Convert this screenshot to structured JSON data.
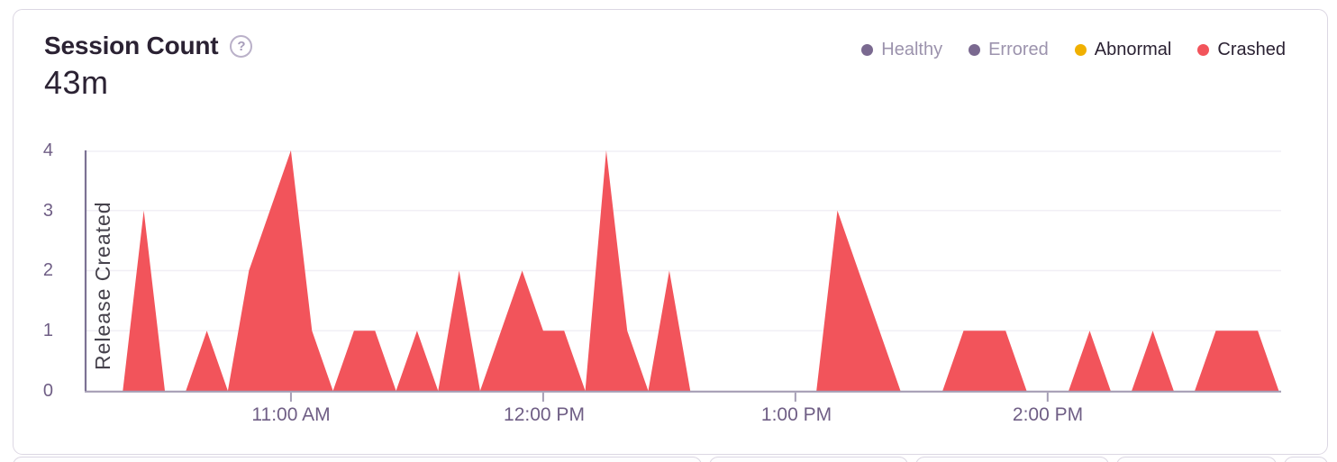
{
  "card": {
    "title": "Session Count",
    "help_icon": "?",
    "total": "43m"
  },
  "legend": {
    "position": "top-right",
    "items": [
      {
        "label": "Healthy",
        "color": "#7a6990",
        "muted": true
      },
      {
        "label": "Errored",
        "color": "#7a6990",
        "muted": true
      },
      {
        "label": "Abnormal",
        "color": "#f0b000",
        "muted": false
      },
      {
        "label": "Crashed",
        "color": "#f2545b",
        "muted": false
      }
    ]
  },
  "chart_data": {
    "type": "area",
    "title": "Session Count",
    "total_label": "43m",
    "interval_minutes": 5,
    "x": [
      "10:20",
      "10:25",
      "10:30",
      "10:35",
      "10:40",
      "10:45",
      "10:50",
      "10:55",
      "11:00",
      "11:05",
      "11:10",
      "11:15",
      "11:20",
      "11:25",
      "11:30",
      "11:35",
      "11:40",
      "11:45",
      "11:50",
      "11:55",
      "12:00",
      "12:05",
      "12:10",
      "12:15",
      "12:20",
      "12:25",
      "12:30",
      "12:35",
      "12:40",
      "12:45",
      "12:50",
      "12:55",
      "13:00",
      "13:05",
      "13:10",
      "13:15",
      "13:20",
      "13:25",
      "13:30",
      "13:35",
      "13:40",
      "13:45",
      "13:50",
      "13:55",
      "14:00",
      "14:05",
      "14:10",
      "14:15",
      "14:20",
      "14:25",
      "14:30",
      "14:35",
      "14:40",
      "14:45",
      "14:50",
      "14:55"
    ],
    "series": [
      {
        "name": "Crashed",
        "color": "#f2545b",
        "values": [
          0,
          3,
          0,
          0,
          1,
          0,
          2,
          3,
          4,
          1,
          0,
          1,
          1,
          0,
          1,
          0,
          2,
          0,
          1,
          2,
          1,
          1,
          0,
          4,
          1,
          0,
          2,
          0,
          0,
          0,
          0,
          0,
          0,
          0,
          3,
          2,
          1,
          0,
          0,
          0,
          1,
          1,
          1,
          0,
          0,
          0,
          1,
          0,
          0,
          1,
          0,
          0,
          1,
          1,
          1,
          0
        ]
      }
    ],
    "ylim": [
      0,
      4
    ],
    "yticks": [
      0,
      1,
      2,
      3,
      4
    ],
    "xtick_labels": [
      "11:00 AM",
      "12:00 PM",
      "1:00 PM",
      "2:00 PM"
    ],
    "xtick_indices": [
      8,
      20,
      32,
      44
    ],
    "grid": "horizontal-only",
    "legend_position": "top-right",
    "annotations": [
      {
        "type": "vertical-line",
        "label": "Release Created",
        "position": "chart-left-edge"
      }
    ]
  },
  "colors": {
    "crashed_red": "#f2545b",
    "abnormal_yellow": "#f0b000",
    "healthy_purple": "#7a6990",
    "axis_text": "#6f5e85",
    "axis_line": "#a59eb5",
    "release_line": "#7c7294",
    "gridline": "#f1eff5",
    "title_text": "#2b2233",
    "muted_legend_text": "#9c93ad",
    "card_border": "#dcd7e3"
  }
}
